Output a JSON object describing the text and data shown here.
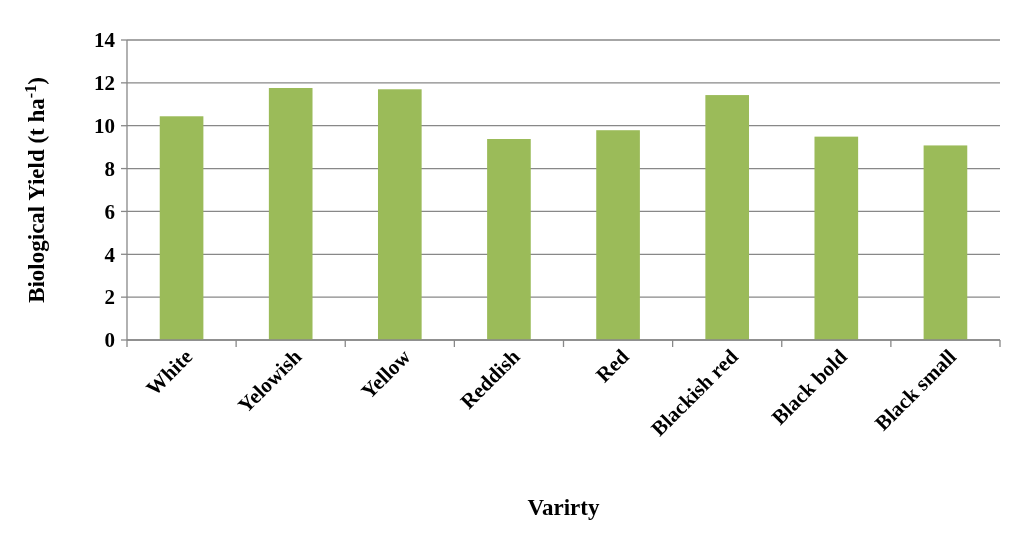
{
  "chart_data": {
    "type": "bar",
    "xlabel": "Varirty",
    "ylabel": "Biological Yield  (t ha$^{-1}$)",
    "categories": [
      "White",
      "Yelowish",
      "Yellow",
      "Reddish",
      "Red",
      "Blackish red",
      "Black bold",
      "Black small"
    ],
    "values": [
      10.44,
      11.76,
      11.7,
      9.38,
      9.79,
      11.43,
      9.49,
      9.08
    ],
    "color": "#9bbb59",
    "ylim": [
      0,
      14
    ],
    "yticks": [
      0,
      2,
      4,
      6,
      8,
      10,
      12,
      14
    ],
    "grid": "y"
  }
}
